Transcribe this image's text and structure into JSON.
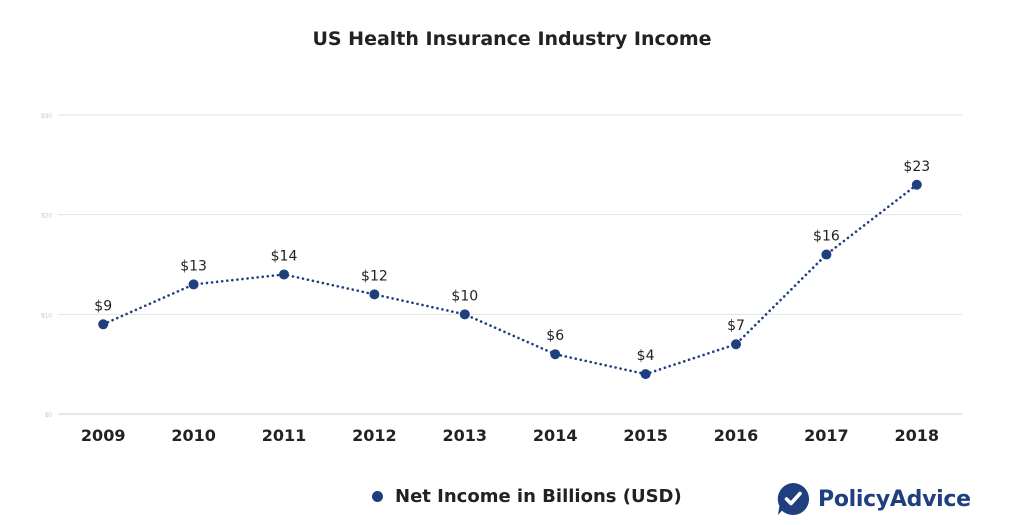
{
  "brand": {
    "name": "PolicyAdvice",
    "color": "#1f3f7f"
  },
  "chart_data": {
    "type": "line",
    "title": "US Health Insurance Industry Income",
    "xlabel": "",
    "ylabel": "",
    "categories": [
      "2009",
      "2010",
      "2011",
      "2012",
      "2013",
      "2014",
      "2015",
      "2016",
      "2017",
      "2018"
    ],
    "series": [
      {
        "name": "Net Income in Billions (USD)",
        "values": [
          9,
          13,
          14,
          12,
          10,
          6,
          4,
          7,
          16,
          23
        ],
        "data_labels": [
          "$9",
          "$13",
          "$14",
          "$12",
          "$10",
          "$6",
          "$4",
          "$7",
          "$16",
          "$23"
        ],
        "color": "#1f3f7f",
        "line_style": "dotted",
        "markers": "circle"
      }
    ],
    "ylim": [
      0,
      30
    ],
    "yticks": [
      {
        "value": 0,
        "label": "$0"
      },
      {
        "value": 10,
        "label": "$10"
      },
      {
        "value": 20,
        "label": "$20"
      },
      {
        "value": 30,
        "label": "$30"
      }
    ],
    "grid": true,
    "legend": "bottom-center"
  }
}
